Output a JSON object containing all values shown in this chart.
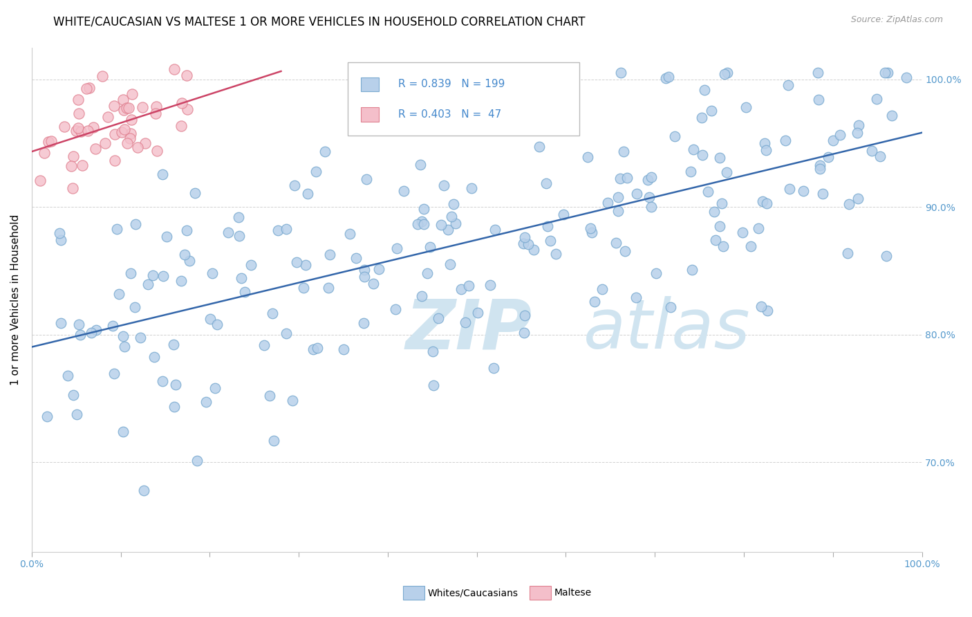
{
  "title": "WHITE/CAUCASIAN VS MALTESE 1 OR MORE VEHICLES IN HOUSEHOLD CORRELATION CHART",
  "source": "Source: ZipAtlas.com",
  "ylabel": "1 or more Vehicles in Household",
  "xlim": [
    0.0,
    1.0
  ],
  "ylim": [
    0.63,
    1.025
  ],
  "yticks": [
    0.7,
    0.8,
    0.9,
    1.0
  ],
  "ytick_labels_right": [
    "70.0%",
    "80.0%",
    "90.0%",
    "100.0%"
  ],
  "xtick_labels": [
    "0.0%",
    "100.0%"
  ],
  "blue_R": 0.839,
  "blue_N": 199,
  "pink_R": 0.403,
  "pink_N": 47,
  "blue_color": "#b8d0ea",
  "blue_edge_color": "#7aaad0",
  "pink_color": "#f4bfca",
  "pink_edge_color": "#e08090",
  "blue_line_color": "#3366aa",
  "pink_line_color": "#cc4466",
  "legend_blue_label": "Whites/Caucasians",
  "legend_pink_label": "Maltese",
  "watermark_zip": "ZIP",
  "watermark_atlas": "atlas",
  "watermark_color": "#d0e4f0",
  "title_fontsize": 12,
  "axis_label_fontsize": 11,
  "tick_fontsize": 10,
  "legend_fontsize": 11,
  "blue_trend_x0": 0.0,
  "blue_trend_y0": 0.79,
  "blue_trend_x1": 1.0,
  "blue_trend_y1": 0.96,
  "pink_trend_x0": 0.0,
  "pink_trend_y0": 0.95,
  "pink_trend_x1": 0.3,
  "pink_trend_y1": 0.995,
  "seed_blue": 42,
  "seed_pink": 99
}
